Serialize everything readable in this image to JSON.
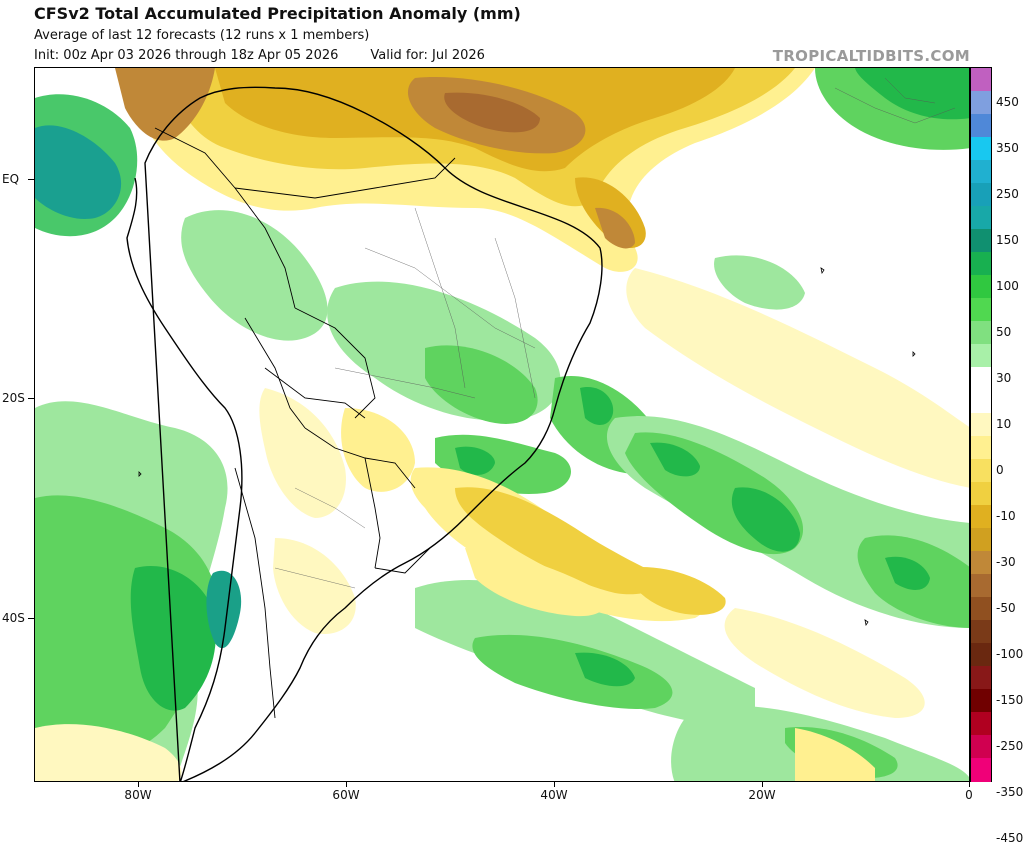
{
  "header": {
    "title": "CFSv2 Total Accumulated Precipitation Anomaly (mm)",
    "subtitle": "Average of last 12 forecasts (12 runs x 1 members)",
    "init": "Init: 00z Apr 03 2026 through 18z Apr 05 2026",
    "valid": "Valid for: Jul 2026",
    "credit": "TROPICALTIDBITS.COM"
  },
  "axes": {
    "y_labels": [
      "EQ",
      "20S",
      "40S"
    ],
    "x_labels": [
      "80W",
      "60W",
      "40W",
      "20W",
      "0"
    ]
  },
  "colorbar": {
    "labels": [
      "450",
      "350",
      "250",
      "150",
      "100",
      "50",
      "30",
      "10",
      "0",
      "-10",
      "-30",
      "-50",
      "-100",
      "-150",
      "-250",
      "-350",
      "-450"
    ],
    "colors": [
      "#c060c0",
      "#7f9fdf",
      "#4f88d8",
      "#18c8f0",
      "#20b0d0",
      "#18a0b8",
      "#18a8a8",
      "#109070",
      "#18b050",
      "#30c840",
      "#50d850",
      "#80e080",
      "#a8f0a8",
      "#ffffff",
      "#ffffff",
      "#fff8c0",
      "#fff090",
      "#f8e060",
      "#f0d040",
      "#e0b020",
      "#d0a020",
      "#c08838",
      "#a86a30",
      "#905020",
      "#7a3a18",
      "#6a2810",
      "#881818",
      "#700000",
      "#b00020",
      "#d00050",
      "#f00078"
    ]
  },
  "map_data": {
    "region": "South America and South Atlantic",
    "variable": "Total Accumulated Precipitation Anomaly (mm)"
  }
}
